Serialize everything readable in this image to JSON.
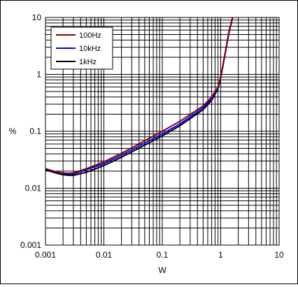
{
  "chart_data": {
    "type": "line",
    "xlabel": "W",
    "ylabel": "%",
    "x_scale": "log",
    "y_scale": "log",
    "xlim": [
      0.001,
      10
    ],
    "ylim": [
      0.001,
      10
    ],
    "grid": true,
    "legend_position": "top-left",
    "x_ticks": [
      {
        "value": 0.001,
        "label": "0.001"
      },
      {
        "value": 0.01,
        "label": "0.01"
      },
      {
        "value": 0.1,
        "label": "0.1"
      },
      {
        "value": 1,
        "label": "1"
      },
      {
        "value": 10,
        "label": "10"
      }
    ],
    "y_ticks": [
      {
        "value": 0.001,
        "label": "0.001"
      },
      {
        "value": 0.01,
        "label": "0.01"
      },
      {
        "value": 0.1,
        "label": "0.1"
      },
      {
        "value": 1,
        "label": "1"
      },
      {
        "value": 10,
        "label": "10"
      }
    ],
    "series": [
      {
        "name": "100Hz",
        "color": "#8b0000",
        "points": [
          [
            0.001,
            0.022
          ],
          [
            0.0015,
            0.0195
          ],
          [
            0.002,
            0.0185
          ],
          [
            0.0025,
            0.0183
          ],
          [
            0.003,
            0.0185
          ],
          [
            0.005,
            0.022
          ],
          [
            0.01,
            0.029
          ],
          [
            0.02,
            0.041
          ],
          [
            0.05,
            0.068
          ],
          [
            0.1,
            0.1
          ],
          [
            0.2,
            0.15
          ],
          [
            0.5,
            0.28
          ],
          [
            0.7,
            0.4
          ],
          [
            0.9,
            0.6
          ],
          [
            1.0,
            0.9
          ],
          [
            1.2,
            2.5
          ],
          [
            1.4,
            6.0
          ],
          [
            1.6,
            10
          ]
        ]
      },
      {
        "name": "10kHz",
        "color": "#0000ff",
        "points": [
          [
            0.001,
            0.022
          ],
          [
            0.0015,
            0.0192
          ],
          [
            0.002,
            0.018
          ],
          [
            0.0025,
            0.0177
          ],
          [
            0.003,
            0.0178
          ],
          [
            0.005,
            0.021
          ],
          [
            0.01,
            0.027
          ],
          [
            0.02,
            0.038
          ],
          [
            0.05,
            0.062
          ],
          [
            0.1,
            0.09
          ],
          [
            0.2,
            0.135
          ],
          [
            0.5,
            0.26
          ],
          [
            0.7,
            0.37
          ],
          [
            0.9,
            0.58
          ],
          [
            1.0,
            0.88
          ],
          [
            1.2,
            2.4
          ],
          [
            1.4,
            5.8
          ],
          [
            1.6,
            10
          ]
        ]
      },
      {
        "name": "1kHz",
        "color": "#000000",
        "points": [
          [
            0.001,
            0.021
          ],
          [
            0.0015,
            0.0185
          ],
          [
            0.002,
            0.0172
          ],
          [
            0.0025,
            0.0168
          ],
          [
            0.003,
            0.0168
          ],
          [
            0.005,
            0.019
          ],
          [
            0.01,
            0.025
          ],
          [
            0.02,
            0.035
          ],
          [
            0.05,
            0.057
          ],
          [
            0.1,
            0.083
          ],
          [
            0.2,
            0.125
          ],
          [
            0.5,
            0.24
          ],
          [
            0.7,
            0.35
          ],
          [
            0.9,
            0.56
          ],
          [
            1.0,
            0.86
          ],
          [
            1.2,
            2.4
          ],
          [
            1.4,
            5.7
          ],
          [
            1.6,
            10
          ]
        ]
      }
    ]
  }
}
